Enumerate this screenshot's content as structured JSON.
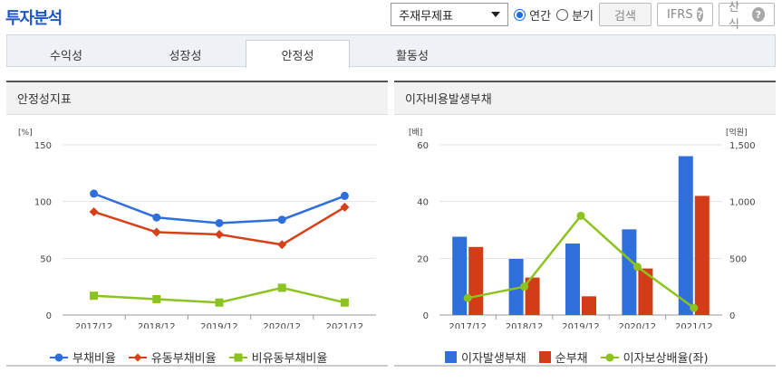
{
  "header": {
    "title": "투자분석"
  },
  "toolbar": {
    "select_value": "주재무제표",
    "radio_annual": "연간",
    "radio_quarter": "분기",
    "search_label": "검색",
    "ifrs_label": "IFRS",
    "formula_label": "산식",
    "help_glyph": "?"
  },
  "tabs": [
    {
      "label": "수익성"
    },
    {
      "label": "성장성"
    },
    {
      "label": "안정성",
      "active": true
    },
    {
      "label": "활동성"
    }
  ],
  "panels": {
    "left_title": "안정성지표",
    "right_title": "이자비용발생부채"
  },
  "colors": {
    "blue": "#2f6fdc",
    "red": "#d8401a",
    "green": "#8cc31e",
    "bar_blue": "#2f6fdc",
    "bar_red": "#d23c16"
  },
  "chart_data": [
    {
      "type": "line",
      "title": "",
      "y_unit": "[%]",
      "categories": [
        "2017/12",
        "2018/12",
        "2019/12",
        "2020/12",
        "2021/12"
      ],
      "ylim": [
        0,
        150
      ],
      "yticks": [
        "0",
        "50",
        "100",
        "150"
      ],
      "grid": true,
      "legend_position": "bottom",
      "series": [
        {
          "name": "부채비율",
          "marker": "circle",
          "color": "#2f6fdc",
          "values": [
            107,
            86,
            81,
            84,
            105
          ]
        },
        {
          "name": "유동부채비율",
          "marker": "diamond",
          "color": "#d8401a",
          "values": [
            91,
            73,
            71,
            62,
            95
          ]
        },
        {
          "name": "비유동부채비율",
          "marker": "square",
          "color": "#8cc31e",
          "values": [
            17,
            14,
            11,
            24,
            11
          ]
        }
      ]
    },
    {
      "type": "bar",
      "title": "",
      "y_unit_left": "[배]",
      "y_unit_right": "[억원]",
      "categories": [
        "2017/12",
        "2018/12",
        "2019/12",
        "2020/12",
        "2021/12"
      ],
      "ylim_left": [
        0,
        60
      ],
      "yticks_left": [
        "0",
        "20",
        "40",
        "60"
      ],
      "ylim_right": [
        0,
        1500
      ],
      "yticks_right": [
        "0",
        "500",
        "1,000",
        "1,500"
      ],
      "grid": true,
      "legend_position": "bottom",
      "series": [
        {
          "name": "이자발생부채",
          "axis": "right",
          "kind": "bar",
          "color": "#2f6fdc",
          "values": [
            690,
            495,
            630,
            755,
            1400
          ]
        },
        {
          "name": "순부채",
          "axis": "right",
          "kind": "bar",
          "color": "#d23c16",
          "values": [
            600,
            330,
            165,
            410,
            1050
          ]
        },
        {
          "name": "이자보상배율(좌)",
          "axis": "left",
          "kind": "line",
          "color": "#8cc31e",
          "values": [
            6,
            10,
            35,
            17,
            2.5
          ]
        }
      ]
    }
  ]
}
